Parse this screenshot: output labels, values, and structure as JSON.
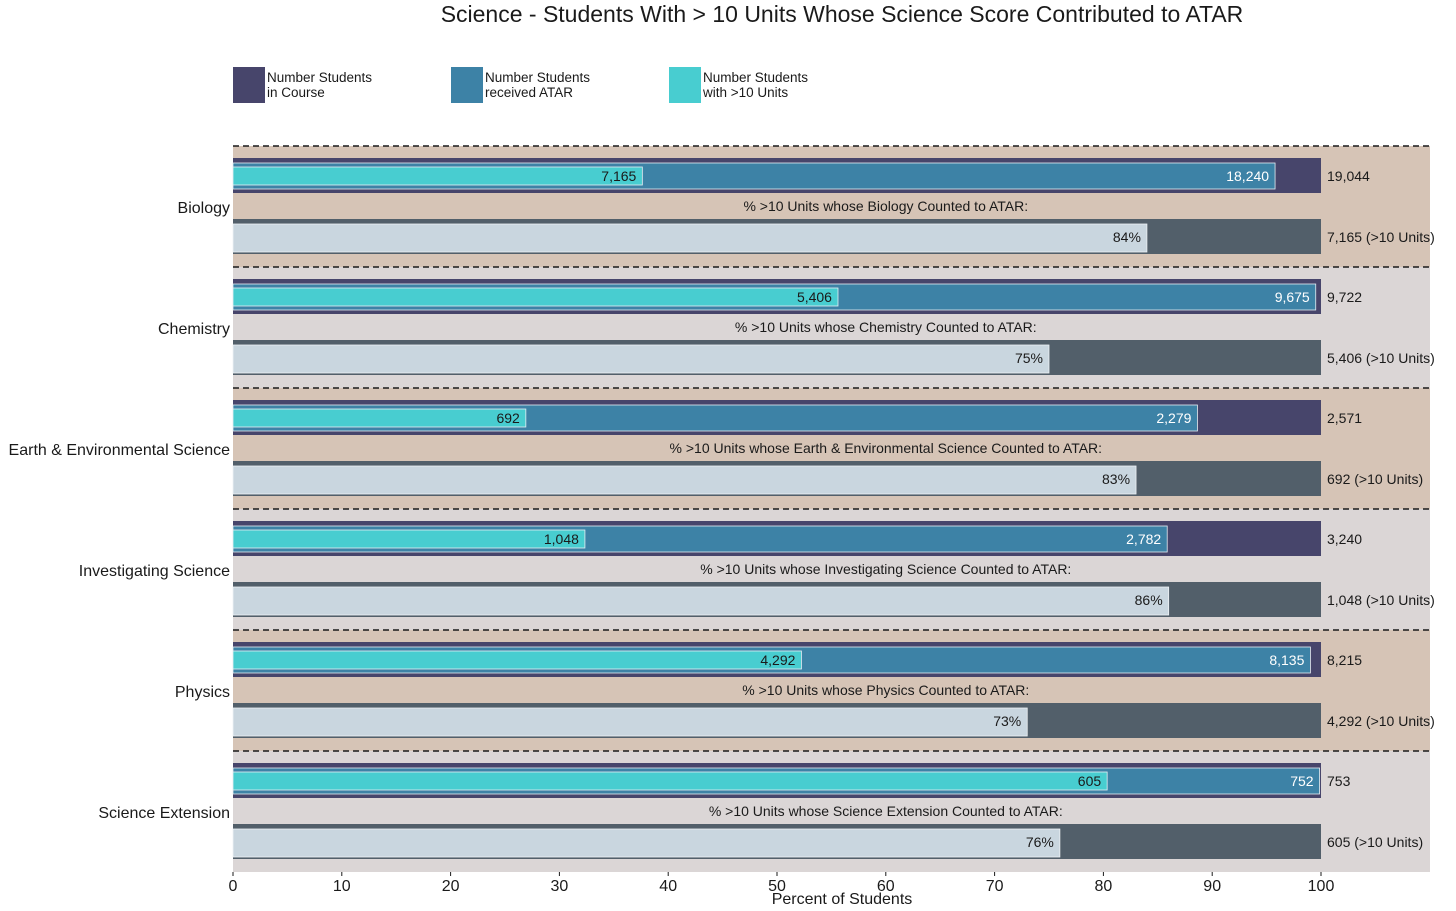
{
  "chart_data": {
    "type": "bar",
    "title": "Science  -  Students With > 10 Units Whose Science Score Contributed to ATAR",
    "xlabel": "Percent of Students",
    "ylabel": "",
    "xlim": [
      0,
      110
    ],
    "xticks": [
      "0",
      "10",
      "20",
      "30",
      "40",
      "50",
      "60",
      "70",
      "80",
      "90",
      "100"
    ],
    "legend": [
      {
        "line1": "Number Students",
        "line2": "in Course",
        "color": "#47456b"
      },
      {
        "line1": "Number Students",
        "line2": "received ATAR",
        "color": "#3d82a6"
      },
      {
        "line1": "Number Students",
        "line2": "with >10 Units",
        "color": "#48cdd0"
      }
    ],
    "colors": {
      "course": "#47456b",
      "atar": "#3d82a6",
      "units": "#48cdd0",
      "pct_bg": "#525f6a",
      "pct_fill": "#c9d6df",
      "band_a": "#d6c4b6",
      "band_b": "#dbd6d6"
    },
    "categories": [
      {
        "name": "Biology",
        "course": 19044,
        "atar": 18240,
        "units": 7165,
        "course_label": "19,044",
        "atar_label": "18,240",
        "units_label": "7,165",
        "caption": "% >10 Units whose Biology Counted to ATAR:",
        "pct": 84,
        "pct_label": "84%",
        "units_right_label": "7,165 (>10 Units)"
      },
      {
        "name": "Chemistry",
        "course": 9722,
        "atar": 9675,
        "units": 5406,
        "course_label": "9,722",
        "atar_label": "9,675",
        "units_label": "5,406",
        "caption": "% >10 Units whose Chemistry Counted to ATAR:",
        "pct": 75,
        "pct_label": "75%",
        "units_right_label": "5,406 (>10 Units)"
      },
      {
        "name": "Earth & Environmental Science",
        "course": 2571,
        "atar": 2279,
        "units": 692,
        "course_label": "2,571",
        "atar_label": "2,279",
        "units_label": "692",
        "caption": "% >10 Units whose Earth & Environmental Science Counted to ATAR:",
        "pct": 83,
        "pct_label": "83%",
        "units_right_label": "692 (>10 Units)"
      },
      {
        "name": "Investigating Science",
        "course": 3240,
        "atar": 2782,
        "units": 1048,
        "course_label": "3,240",
        "atar_label": "2,782",
        "units_label": "1,048",
        "caption": "% >10 Units whose Investigating Science Counted to ATAR:",
        "pct": 86,
        "pct_label": "86%",
        "units_right_label": "1,048 (>10 Units)"
      },
      {
        "name": "Physics",
        "course": 8215,
        "atar": 8135,
        "units": 4292,
        "course_label": "8,215",
        "atar_label": "8,135",
        "units_label": "4,292",
        "caption": "% >10 Units whose Physics Counted to ATAR:",
        "pct": 73,
        "pct_label": "73%",
        "units_right_label": "4,292 (>10 Units)"
      },
      {
        "name": "Science Extension",
        "course": 753,
        "atar": 752,
        "units": 605,
        "course_label": "753",
        "atar_label": "752",
        "units_label": "605",
        "caption": "% >10 Units whose Science Extension Counted to ATAR:",
        "pct": 76,
        "pct_label": "76%",
        "units_right_label": "605 (>10 Units)"
      }
    ]
  }
}
